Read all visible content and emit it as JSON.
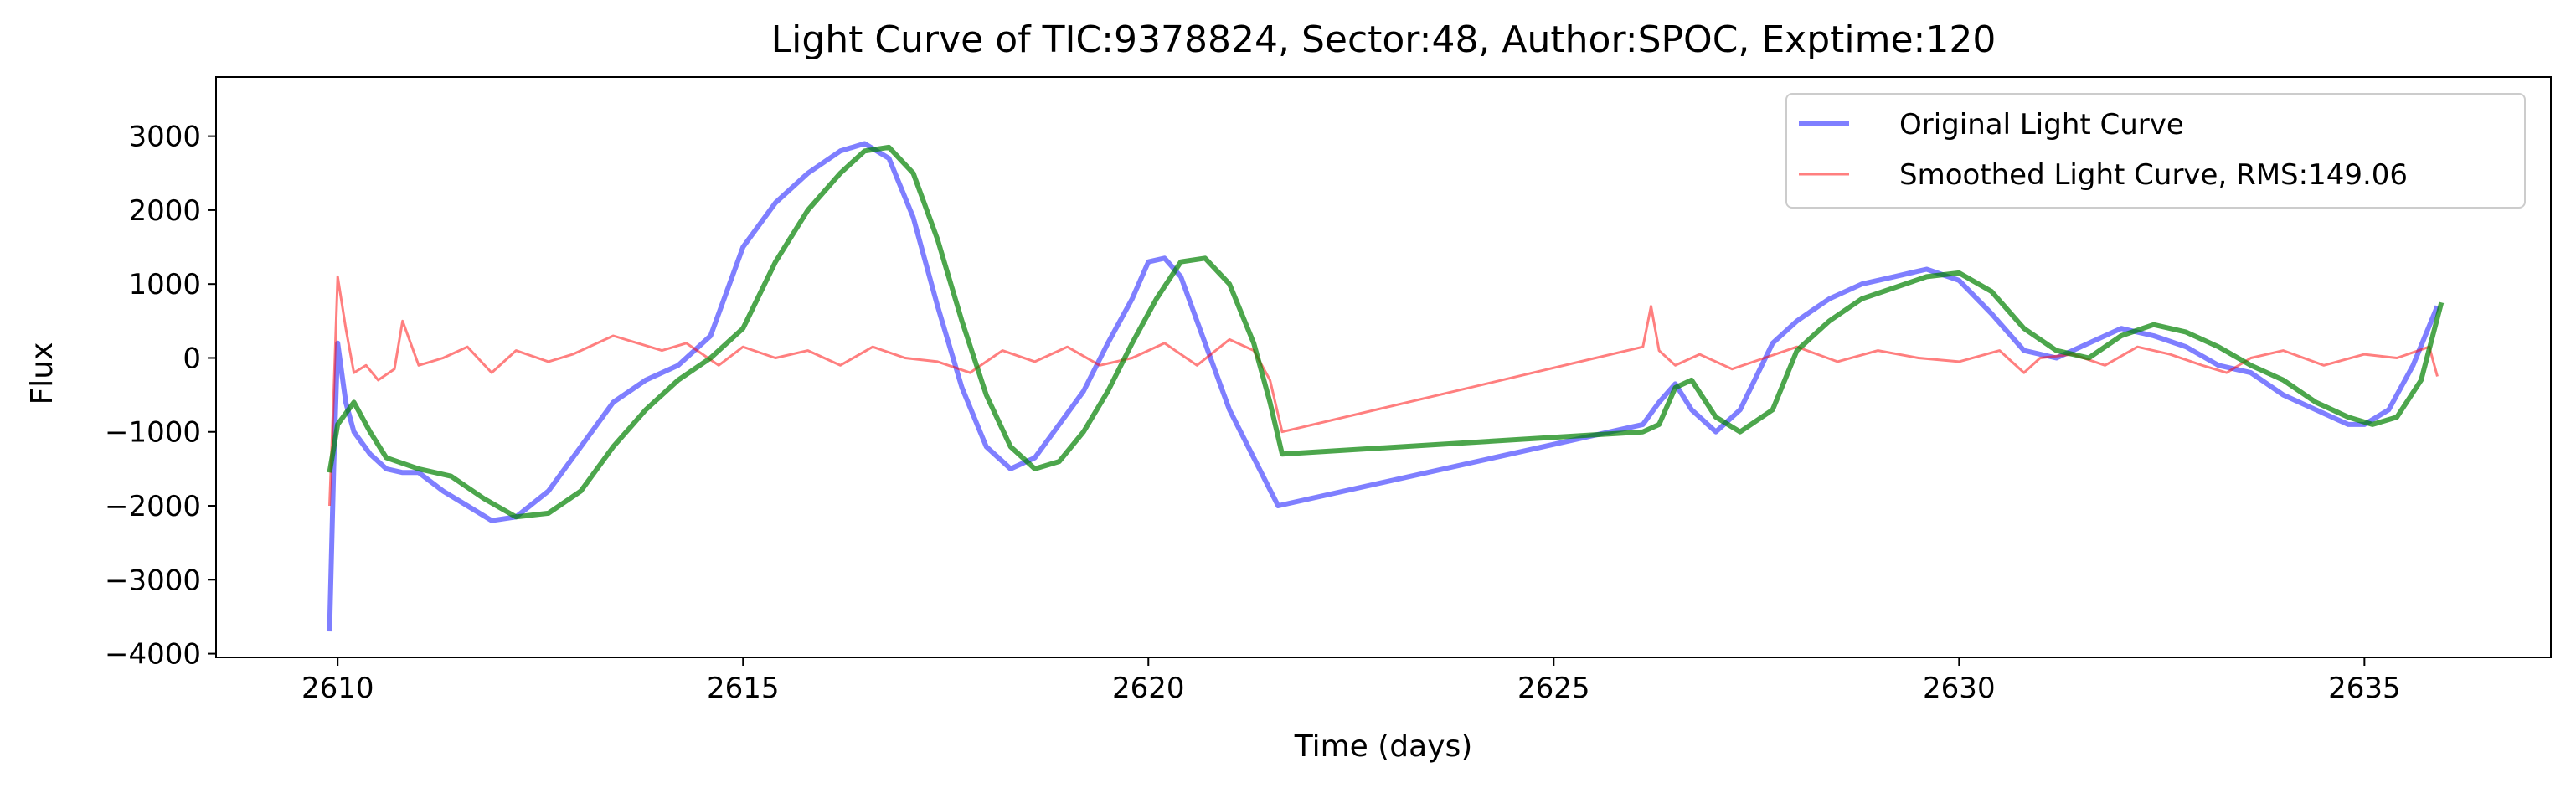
{
  "chart_data": {
    "type": "line",
    "title": "Light Curve of TIC:9378824, Sector:48, Author:SPOC, Exptime:120",
    "xlabel": "Time (days)",
    "ylabel": "Flux",
    "xlim": [
      2608.5,
      2637.3
    ],
    "ylim": [
      -4050,
      3800
    ],
    "xticks": [
      2610,
      2615,
      2620,
      2625,
      2630,
      2635
    ],
    "yticks": [
      -4000,
      -3000,
      -2000,
      -1000,
      0,
      1000,
      2000,
      3000
    ],
    "xtick_labels": [
      "2610",
      "2615",
      "2620",
      "2625",
      "2630",
      "2635"
    ],
    "ytick_labels": [
      "−4000",
      "−3000",
      "−2000",
      "−1000",
      "0",
      "1000",
      "2000",
      "3000"
    ],
    "grid": false,
    "legend_position": "top-right",
    "series": [
      {
        "name": "Original Light Curve",
        "color": "#0000ff",
        "opacity": 0.5,
        "x": [
          2609.9,
          2609.95,
          2610.0,
          2610.1,
          2610.2,
          2610.4,
          2610.6,
          2610.8,
          2611.0,
          2611.3,
          2611.6,
          2611.9,
          2612.2,
          2612.6,
          2613.0,
          2613.4,
          2613.8,
          2614.2,
          2614.6,
          2615.0,
          2615.4,
          2615.8,
          2616.2,
          2616.5,
          2616.8,
          2617.1,
          2617.4,
          2617.7,
          2618.0,
          2618.3,
          2618.6,
          2618.9,
          2619.2,
          2619.5,
          2619.8,
          2620.0,
          2620.2,
          2620.4,
          2620.7,
          2621.0,
          2621.3,
          2621.6,
          2626.1,
          2626.3,
          2626.5,
          2626.7,
          2627.0,
          2627.3,
          2627.7,
          2628.0,
          2628.4,
          2628.8,
          2629.2,
          2629.6,
          2630.0,
          2630.4,
          2630.8,
          2631.2,
          2631.6,
          2632.0,
          2632.4,
          2632.8,
          2633.2,
          2633.6,
          2634.0,
          2634.4,
          2634.8,
          2635.0,
          2635.3,
          2635.6,
          2635.9
        ],
        "y": [
          -3700,
          -1500,
          200,
          -600,
          -1000,
          -1300,
          -1500,
          -1550,
          -1550,
          -1800,
          -2000,
          -2200,
          -2150,
          -1800,
          -1200,
          -600,
          -300,
          -100,
          300,
          1500,
          2100,
          2500,
          2800,
          2900,
          2700,
          1900,
          700,
          -400,
          -1200,
          -1500,
          -1350,
          -900,
          -450,
          200,
          800,
          1300,
          1350,
          1100,
          200,
          -700,
          -1350,
          -2000,
          -900,
          -600,
          -350,
          -700,
          -1000,
          -700,
          200,
          500,
          800,
          1000,
          1100,
          1200,
          1050,
          600,
          100,
          0,
          200,
          400,
          300,
          150,
          -100,
          -200,
          -500,
          -700,
          -900,
          -900,
          -700,
          -100,
          700
        ]
      },
      {
        "name": "Smoothed Light Curve, RMS:149.06",
        "color": "#ff0000",
        "opacity": 0.5,
        "x": [
          2609.9,
          2609.95,
          2610.0,
          2610.1,
          2610.2,
          2610.35,
          2610.5,
          2610.7,
          2610.8,
          2611.0,
          2611.3,
          2611.6,
          2611.9,
          2612.2,
          2612.6,
          2612.9,
          2613.1,
          2613.4,
          2613.7,
          2614.0,
          2614.3,
          2614.7,
          2615.0,
          2615.4,
          2615.8,
          2616.2,
          2616.6,
          2617.0,
          2617.4,
          2617.8,
          2618.2,
          2618.6,
          2619.0,
          2619.4,
          2619.8,
          2620.2,
          2620.6,
          2621.0,
          2621.3,
          2621.5,
          2621.65,
          2626.1,
          2626.2,
          2626.3,
          2626.5,
          2626.8,
          2627.2,
          2627.6,
          2628.0,
          2628.5,
          2629.0,
          2629.5,
          2630.0,
          2630.5,
          2630.8,
          2631.0,
          2631.4,
          2631.8,
          2632.2,
          2632.6,
          2633.0,
          2633.3,
          2633.6,
          2634.0,
          2634.5,
          2635.0,
          2635.4,
          2635.8,
          2635.9
        ],
        "y": [
          -2000,
          -500,
          1100,
          400,
          -200,
          -100,
          -300,
          -150,
          500,
          -100,
          0,
          150,
          -200,
          100,
          -50,
          50,
          150,
          300,
          200,
          100,
          200,
          -100,
          150,
          0,
          100,
          -100,
          150,
          0,
          -50,
          -200,
          100,
          -50,
          150,
          -100,
          0,
          200,
          -100,
          250,
          100,
          -300,
          -1000,
          150,
          700,
          100,
          -100,
          50,
          -150,
          0,
          150,
          -50,
          100,
          0,
          -50,
          100,
          -200,
          0,
          50,
          -100,
          150,
          50,
          -100,
          -200,
          0,
          100,
          -100,
          50,
          0,
          150,
          -250
        ]
      },
      {
        "name": "",
        "color": "#008000",
        "opacity": 0.7,
        "x": [
          2609.9,
          2610.0,
          2610.2,
          2610.4,
          2610.6,
          2611.0,
          2611.4,
          2611.8,
          2612.2,
          2612.6,
          2613.0,
          2613.4,
          2613.8,
          2614.2,
          2614.6,
          2615.0,
          2615.4,
          2615.8,
          2616.2,
          2616.5,
          2616.8,
          2617.1,
          2617.4,
          2617.7,
          2618.0,
          2618.3,
          2618.6,
          2618.9,
          2619.2,
          2619.5,
          2619.8,
          2620.1,
          2620.4,
          2620.7,
          2621.0,
          2621.3,
          2621.5,
          2621.65,
          2626.1,
          2626.3,
          2626.5,
          2626.7,
          2627.0,
          2627.3,
          2627.7,
          2628.0,
          2628.4,
          2628.8,
          2629.2,
          2629.6,
          2630.0,
          2630.4,
          2630.8,
          2631.2,
          2631.6,
          2632.0,
          2632.4,
          2632.8,
          2633.2,
          2633.6,
          2634.0,
          2634.4,
          2634.8,
          2635.1,
          2635.4,
          2635.7,
          2635.95
        ],
        "y": [
          -1550,
          -900,
          -600,
          -1000,
          -1350,
          -1500,
          -1600,
          -1900,
          -2150,
          -2100,
          -1800,
          -1200,
          -700,
          -300,
          0,
          400,
          1300,
          2000,
          2500,
          2800,
          2850,
          2500,
          1600,
          500,
          -500,
          -1200,
          -1500,
          -1400,
          -1000,
          -450,
          200,
          800,
          1300,
          1350,
          1000,
          200,
          -600,
          -1300,
          -1000,
          -900,
          -400,
          -300,
          -800,
          -1000,
          -700,
          100,
          500,
          800,
          950,
          1100,
          1150,
          900,
          400,
          100,
          0,
          300,
          450,
          350,
          150,
          -100,
          -300,
          -600,
          -800,
          -900,
          -800,
          -300,
          750
        ]
      }
    ]
  }
}
